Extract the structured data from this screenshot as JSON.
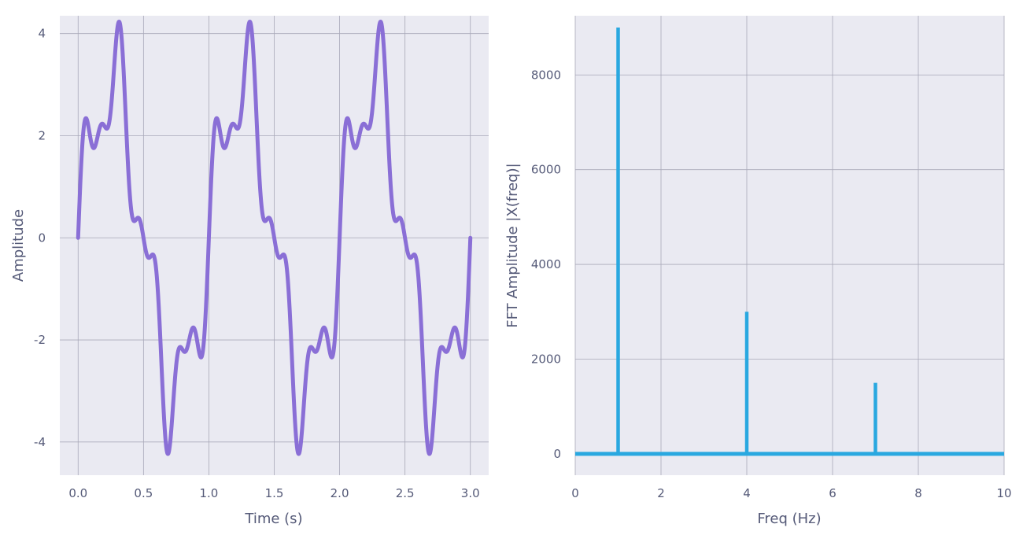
{
  "chart_data": [
    {
      "type": "line",
      "title": "",
      "xlabel": "Time (s)",
      "ylabel": "Amplitude",
      "xlim": [
        -0.14,
        3.14
      ],
      "ylim": [
        -4.65,
        4.35
      ],
      "xticks": [
        0.0,
        0.5,
        1.0,
        1.5,
        2.0,
        2.5,
        3.0
      ],
      "xtick_labels": [
        "0.0",
        "0.5",
        "1.0",
        "1.5",
        "2.0",
        "2.5",
        "3.0"
      ],
      "yticks": [
        4,
        2,
        0,
        -2,
        -4
      ],
      "ytick_labels": [
        "4",
        "2",
        "0",
        "-2",
        "-4"
      ],
      "grid": true,
      "color": "#8a6fd6",
      "series": [
        {
          "formula": "3*sin(2*pi*1*t) + sin(2*pi*4*t) + 0.5*sin(2*pi*7*t)",
          "x_start": 0.0,
          "x_end": 3.0,
          "components": [
            {
              "freq": 1,
              "amplitude": 3
            },
            {
              "freq": 4,
              "amplitude": 1
            },
            {
              "freq": 7,
              "amplitude": 0.5
            }
          ]
        }
      ]
    },
    {
      "type": "stem",
      "title": "",
      "xlabel": "Freq (Hz)",
      "ylabel": "FFT Amplitude |X(freq)|",
      "xlim": [
        0,
        10
      ],
      "ylim": [
        -450,
        9250
      ],
      "xticks": [
        0,
        2,
        4,
        6,
        8,
        10
      ],
      "xtick_labels": [
        "0",
        "2",
        "4",
        "6",
        "8",
        "10"
      ],
      "yticks": [
        8000,
        6000,
        4000,
        2000,
        0
      ],
      "ytick_labels": [
        "8000",
        "6000",
        "4000",
        "2000",
        "0"
      ],
      "grid": true,
      "color": "#29a8e0",
      "baseline": 0,
      "points": [
        {
          "x": 1,
          "y": 9000
        },
        {
          "x": 4,
          "y": 3000
        },
        {
          "x": 7,
          "y": 1500
        }
      ]
    }
  ]
}
